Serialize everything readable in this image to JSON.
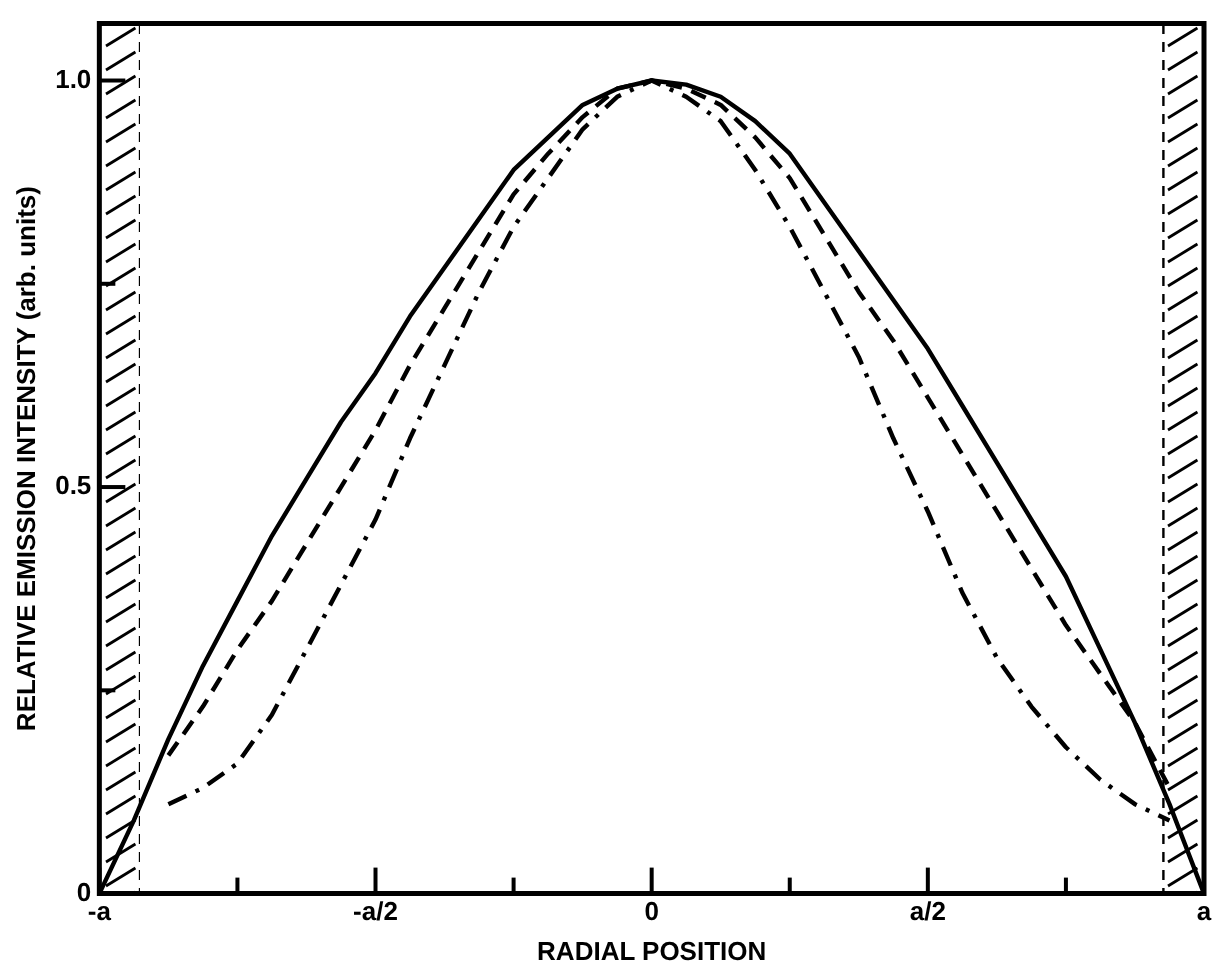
{
  "chart_data": {
    "type": "line",
    "xlabel": "RADIAL POSITION",
    "ylabel": "RELATIVE EMISSION INTENSITY (arb. units)",
    "categories": [
      "-a",
      null,
      null,
      null,
      null,
      null,
      null,
      null,
      "-a/2",
      null,
      null,
      null,
      null,
      null,
      null,
      null,
      "0",
      null,
      null,
      null,
      null,
      null,
      null,
      null,
      "a/2",
      null,
      null,
      null,
      null,
      null,
      null,
      null,
      "a"
    ],
    "ylim": [
      0,
      1.07
    ],
    "yticks": [
      0,
      {
        "value": 0.25,
        "label": null
      },
      0.5,
      {
        "value": 0.75,
        "label": null
      },
      {
        "value": 1,
        "label": "1.0"
      }
    ],
    "grid": false,
    "legend": false,
    "marker": "none",
    "series": [
      {
        "color": "#000000",
        "line_style": "solid",
        "values": [
          0,
          0.09,
          0.19,
          0.28,
          0.36,
          0.44,
          0.51,
          0.58,
          0.64,
          0.71,
          0.77,
          0.83,
          0.89,
          0.93,
          0.97,
          0.99,
          1,
          0.995,
          0.98,
          0.95,
          0.91,
          0.85,
          0.79,
          0.73,
          0.67,
          0.6,
          0.53,
          0.46,
          0.39,
          0.3,
          0.21,
          0.11,
          0
        ]
      },
      {
        "color": "#000000",
        "line_style": "dashed",
        "values": [
          null,
          null,
          0.17,
          0.23,
          0.3,
          0.36,
          0.43,
          0.5,
          0.57,
          0.65,
          0.72,
          0.79,
          0.86,
          0.91,
          0.955,
          0.99,
          1,
          0.99,
          0.97,
          0.93,
          0.88,
          0.81,
          0.74,
          0.68,
          0.61,
          0.54,
          0.47,
          0.4,
          0.33,
          0.27,
          0.21,
          0.13,
          null
        ]
      },
      {
        "color": "#000000",
        "line_style": "dashdot",
        "values": [
          null,
          null,
          0.11,
          0.13,
          0.16,
          0.22,
          0.3,
          0.38,
          0.46,
          0.56,
          0.65,
          0.74,
          0.82,
          0.88,
          0.94,
          0.98,
          1,
          0.98,
          0.95,
          0.89,
          0.82,
          0.74,
          0.66,
          0.56,
          0.47,
          0.37,
          0.29,
          0.23,
          0.18,
          0.14,
          0.11,
          0.09,
          null
        ]
      }
    ]
  }
}
